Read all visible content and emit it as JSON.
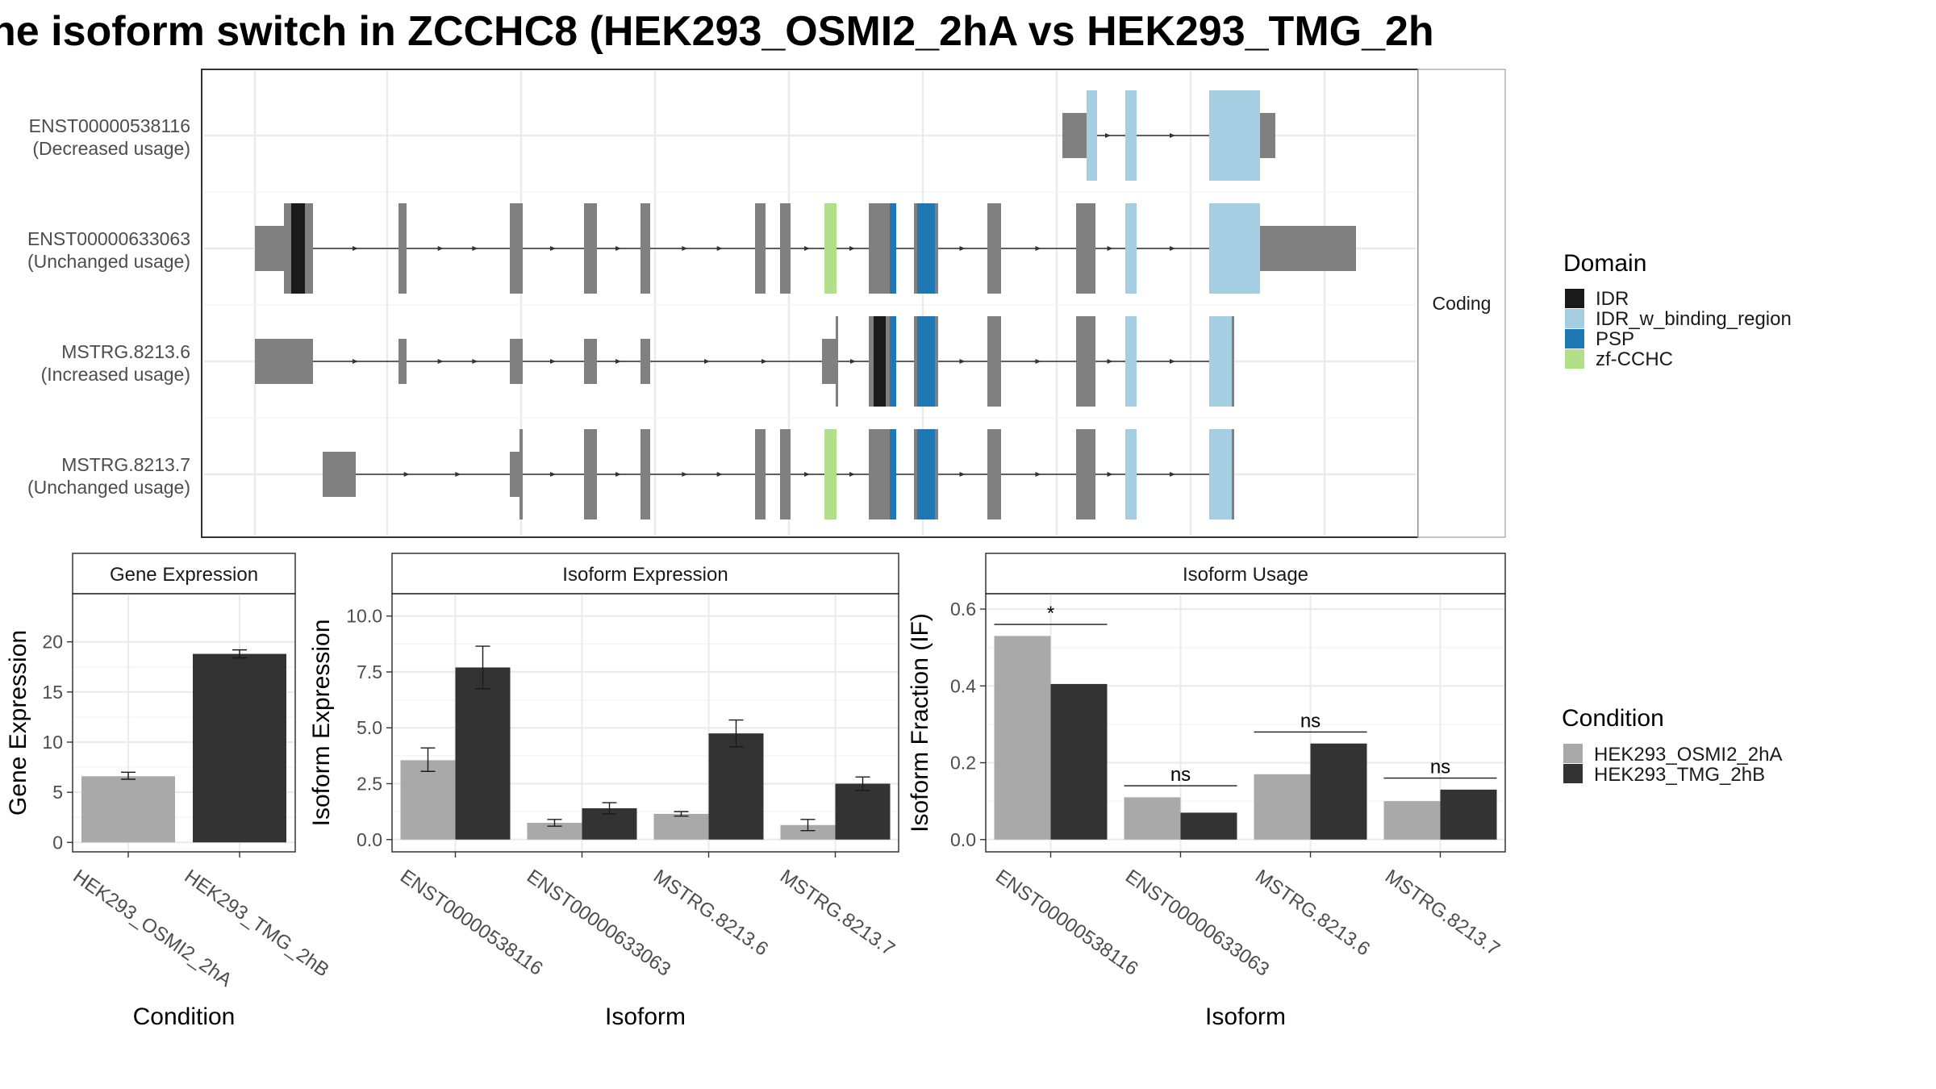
{
  "title": "ne isoform switch in ZCCHC8 (HEK293_OSMI2_2hA vs HEK293_TMG_2h",
  "colors": {
    "exon": "#808080",
    "cond_a": "#a9a9a9",
    "cond_b": "#333333",
    "IDR": "#1a1a1a",
    "IDR_w_binding_region": "#a6cee3",
    "PSP": "#1f78b4",
    "zf-CCHC": "#b2df8a"
  },
  "structure": {
    "facet_label": "Coding",
    "isoforms": [
      {
        "id": "ENST00000538116",
        "usage": "(Decreased usage)",
        "exons": [
          [
            1317,
            1347,
            "utr"
          ],
          [
            1347,
            1353,
            "cds"
          ],
          [
            1395,
            1409,
            "cds"
          ],
          [
            1499,
            1562,
            "cds"
          ],
          [
            1562,
            1581,
            "utr"
          ]
        ],
        "domains": [
          [
            1347,
            1360,
            "IDR_w_binding_region"
          ],
          [
            1395,
            1409,
            "IDR_w_binding_region"
          ],
          [
            1499,
            1562,
            "IDR_w_binding_region"
          ]
        ]
      },
      {
        "id": "ENST00000633063",
        "usage": "(Unchanged usage)",
        "exons": [
          [
            316,
            352,
            "utr"
          ],
          [
            352,
            388,
            "cds"
          ],
          [
            494,
            504,
            "cds"
          ],
          [
            632,
            648,
            "cds"
          ],
          [
            724,
            740,
            "cds"
          ],
          [
            794,
            806,
            "cds"
          ],
          [
            936,
            949,
            "cds"
          ],
          [
            967,
            980,
            "cds"
          ],
          [
            1022,
            1037,
            "cds"
          ],
          [
            1077,
            1111,
            "cds"
          ],
          [
            1133,
            1163,
            "cds"
          ],
          [
            1224,
            1241,
            "cds"
          ],
          [
            1334,
            1358,
            "cds"
          ],
          [
            1395,
            1409,
            "cds"
          ],
          [
            1499,
            1562,
            "cds"
          ],
          [
            1562,
            1681,
            "utr"
          ]
        ],
        "domains": [
          [
            361,
            378,
            "IDR"
          ],
          [
            1022,
            1037,
            "zf-CCHC"
          ],
          [
            1103,
            1111,
            "PSP"
          ],
          [
            1137,
            1159,
            "PSP"
          ],
          [
            1395,
            1409,
            "IDR_w_binding_region"
          ],
          [
            1499,
            1562,
            "IDR_w_binding_region"
          ]
        ]
      },
      {
        "id": "MSTRG.8213.6",
        "usage": "(Increased usage)",
        "exons": [
          [
            316,
            388,
            "utr"
          ],
          [
            494,
            504,
            "utr"
          ],
          [
            632,
            648,
            "utr"
          ],
          [
            724,
            740,
            "utr"
          ],
          [
            794,
            806,
            "utr"
          ],
          [
            1019,
            1036,
            "utr"
          ],
          [
            1036,
            1039,
            "cds"
          ],
          [
            1077,
            1111,
            "cds"
          ],
          [
            1133,
            1163,
            "cds"
          ],
          [
            1224,
            1241,
            "cds"
          ],
          [
            1334,
            1358,
            "cds"
          ],
          [
            1395,
            1409,
            "cds"
          ],
          [
            1499,
            1530,
            "cds"
          ]
        ],
        "domains": [
          [
            1083,
            1098,
            "IDR"
          ],
          [
            1103,
            1111,
            "PSP"
          ],
          [
            1137,
            1159,
            "PSP"
          ],
          [
            1395,
            1409,
            "IDR_w_binding_region"
          ],
          [
            1499,
            1527,
            "IDR_w_binding_region"
          ]
        ]
      },
      {
        "id": "MSTRG.8213.7",
        "usage": "(Unchanged usage)",
        "exons": [
          [
            400,
            441,
            "utr"
          ],
          [
            632,
            644,
            "utr"
          ],
          [
            644,
            648,
            "cds"
          ],
          [
            724,
            740,
            "cds"
          ],
          [
            794,
            806,
            "cds"
          ],
          [
            936,
            949,
            "cds"
          ],
          [
            967,
            980,
            "cds"
          ],
          [
            1022,
            1037,
            "cds"
          ],
          [
            1077,
            1111,
            "cds"
          ],
          [
            1133,
            1163,
            "cds"
          ],
          [
            1224,
            1241,
            "cds"
          ],
          [
            1334,
            1358,
            "cds"
          ],
          [
            1395,
            1409,
            "cds"
          ],
          [
            1499,
            1530,
            "cds"
          ]
        ],
        "domains": [
          [
            1022,
            1037,
            "zf-CCHC"
          ],
          [
            1103,
            1111,
            "PSP"
          ],
          [
            1137,
            1159,
            "PSP"
          ],
          [
            1395,
            1409,
            "IDR_w_binding_region"
          ],
          [
            1499,
            1527,
            "IDR_w_binding_region"
          ]
        ]
      }
    ]
  },
  "legend_domain": {
    "title": "Domain",
    "items": [
      "IDR",
      "IDR_w_binding_region",
      "PSP",
      "zf-CCHC"
    ]
  },
  "legend_condition": {
    "title": "Condition",
    "items": [
      "HEK293_OSMI2_2hA",
      "HEK293_TMG_2hB"
    ]
  },
  "chart_data": [
    {
      "type": "bar",
      "title": "Gene Expression",
      "xlabel": "Condition",
      "ylabel": "Gene Expression",
      "categories": [
        "HEK293_OSMI2_2hA",
        "HEK293_TMG_2hB"
      ],
      "values": [
        6.6,
        18.8
      ],
      "errors": [
        [
          6.3,
          7.0
        ],
        [
          18.4,
          19.2
        ]
      ],
      "ylim": [
        -0.94,
        24.8
      ],
      "yticks": [
        0,
        5,
        10,
        15,
        20
      ],
      "grid": true
    },
    {
      "type": "bar",
      "title": "Isoform Expression",
      "xlabel": "Isoform",
      "ylabel": "Isoform Expression",
      "categories": [
        "ENST00000538116",
        "ENST00000633063",
        "MSTRG.8213.6",
        "MSTRG.8213.7"
      ],
      "series": [
        {
          "name": "HEK293_OSMI2_2hA",
          "values": [
            3.55,
            0.75,
            1.15,
            0.65
          ],
          "errors": [
            [
              3.05,
              4.1
            ],
            [
              0.6,
              0.9
            ],
            [
              1.05,
              1.25
            ],
            [
              0.4,
              0.9
            ]
          ]
        },
        {
          "name": "HEK293_TMG_2hB",
          "values": [
            7.7,
            1.4,
            4.75,
            2.5
          ],
          "errors": [
            [
              6.75,
              8.65
            ],
            [
              1.15,
              1.65
            ],
            [
              4.15,
              5.35
            ],
            [
              2.2,
              2.8
            ]
          ]
        }
      ],
      "ylim": [
        -0.55,
        11.0
      ],
      "yticks": [
        "0.0",
        "2.5",
        "5.0",
        "7.5",
        "10.0"
      ],
      "grid": true
    },
    {
      "type": "bar",
      "title": "Isoform Usage",
      "xlabel": "Isoform",
      "ylabel": "Isoform Fraction (IF)",
      "categories": [
        "ENST00000538116",
        "ENST00000633063",
        "MSTRG.8213.6",
        "MSTRG.8213.7"
      ],
      "series": [
        {
          "name": "HEK293_OSMI2_2hA",
          "values": [
            0.53,
            0.11,
            0.17,
            0.1
          ]
        },
        {
          "name": "HEK293_TMG_2hB",
          "values": [
            0.405,
            0.07,
            0.25,
            0.13
          ]
        }
      ],
      "significance": [
        "*",
        "ns",
        "ns",
        "ns"
      ],
      "sig_y": [
        0.56,
        0.14,
        0.28,
        0.16
      ],
      "ylim": [
        -0.032,
        0.64
      ],
      "yticks": [
        "0.0",
        "0.2",
        "0.4",
        "0.6"
      ],
      "grid": true
    }
  ]
}
